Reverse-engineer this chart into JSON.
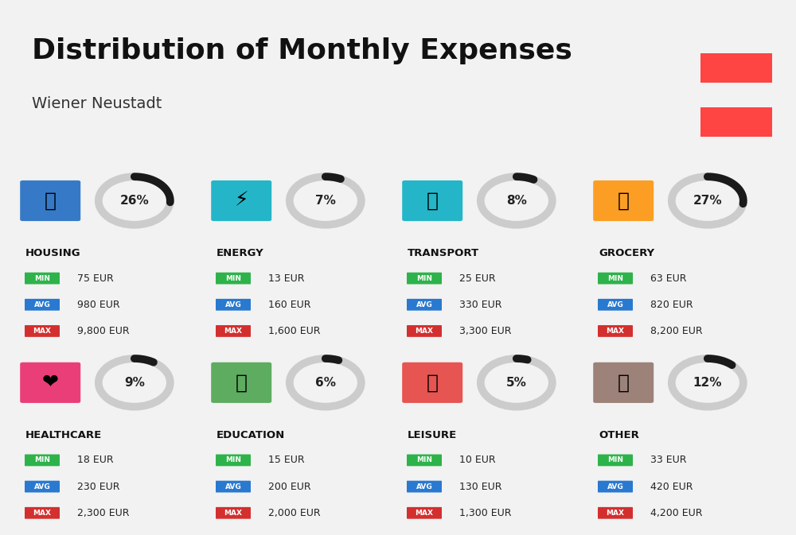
{
  "title": "Distribution of Monthly Expenses",
  "subtitle": "Wiener Neustadt",
  "bg_color": "#f2f2f2",
  "title_color": "#111111",
  "subtitle_color": "#333333",
  "austria_flag_color": "#f44",
  "categories": [
    {
      "name": "HOUSING",
      "pct": 26,
      "min_val": "75 EUR",
      "avg_val": "980 EUR",
      "max_val": "9,800 EUR",
      "icon": "housing"
    },
    {
      "name": "ENERGY",
      "pct": 7,
      "min_val": "13 EUR",
      "avg_val": "160 EUR",
      "max_val": "1,600 EUR",
      "icon": "energy"
    },
    {
      "name": "TRANSPORT",
      "pct": 8,
      "min_val": "25 EUR",
      "avg_val": "330 EUR",
      "max_val": "3,300 EUR",
      "icon": "transport"
    },
    {
      "name": "GROCERY",
      "pct": 27,
      "min_val": "63 EUR",
      "avg_val": "820 EUR",
      "max_val": "8,200 EUR",
      "icon": "grocery"
    },
    {
      "name": "HEALTHCARE",
      "pct": 9,
      "min_val": "18 EUR",
      "avg_val": "230 EUR",
      "max_val": "2,300 EUR",
      "icon": "healthcare"
    },
    {
      "name": "EDUCATION",
      "pct": 6,
      "min_val": "15 EUR",
      "avg_val": "200 EUR",
      "max_val": "2,000 EUR",
      "icon": "education"
    },
    {
      "name": "LEISURE",
      "pct": 5,
      "min_val": "10 EUR",
      "avg_val": "130 EUR",
      "max_val": "1,300 EUR",
      "icon": "leisure"
    },
    {
      "name": "OTHER",
      "pct": 12,
      "min_val": "33 EUR",
      "avg_val": "420 EUR",
      "max_val": "4,200 EUR",
      "icon": "other"
    }
  ],
  "min_color": "#2db34a",
  "avg_color": "#2979d0",
  "max_color": "#d32f2f",
  "label_text_color": "#ffffff",
  "ring_bg_color": "#cccccc",
  "ring_fg_color": "#1a1a1a",
  "ring_linewidth": 8,
  "grid_rows": 2,
  "grid_cols": 4
}
